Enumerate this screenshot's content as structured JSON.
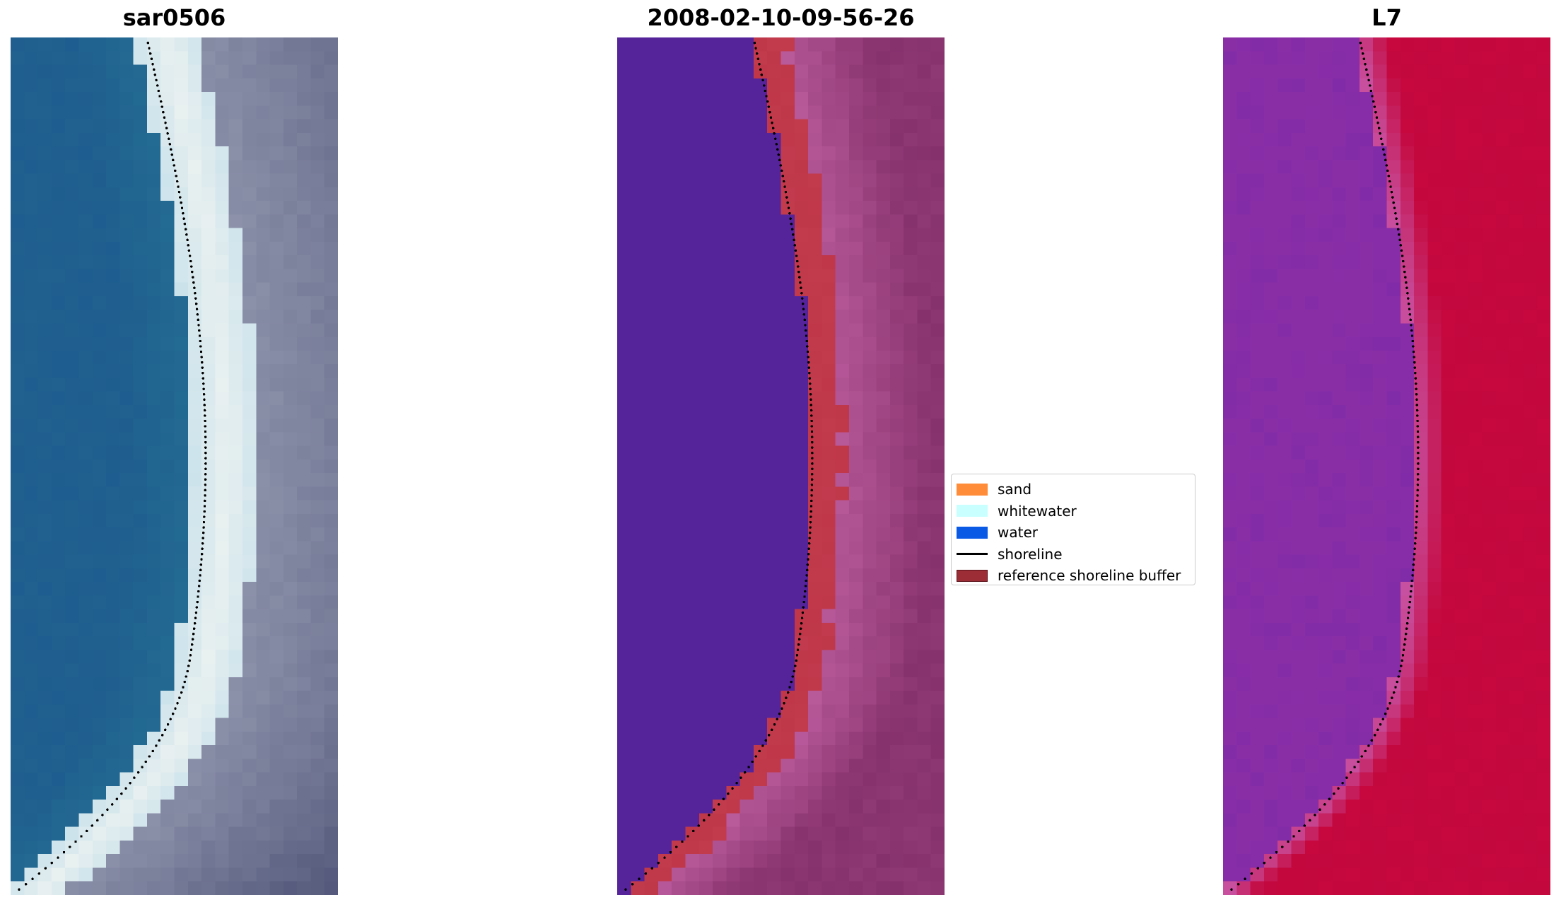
{
  "panels": [
    {
      "title": "sar0506",
      "kind": "rgb"
    },
    {
      "title": "2008-02-10-09-56-26",
      "kind": "classified"
    },
    {
      "title": "L7",
      "kind": "index"
    }
  ],
  "legend": {
    "items": [
      {
        "label": "sand",
        "color": "#ff8c38",
        "type": "patch"
      },
      {
        "label": "whitewater",
        "color": "#c9ffff",
        "type": "patch"
      },
      {
        "label": "water",
        "color": "#0a5ae6",
        "type": "patch"
      },
      {
        "label": "shoreline",
        "color": "#000000",
        "type": "line"
      },
      {
        "label": "reference shoreline buffer",
        "color": "#9c2d37",
        "type": "patch"
      }
    ]
  },
  "colors": {
    "rgb_water": "#1f5f8f",
    "rgb_foam": "#e8f0f0",
    "rgb_land": "#8a8fa8",
    "class_water": "#55249b",
    "class_buffer": "#c0394b",
    "class_land": "#8a3570",
    "index_water": "#8a2ea6",
    "index_land": "#c4083e",
    "shoreline": "#000000"
  }
}
